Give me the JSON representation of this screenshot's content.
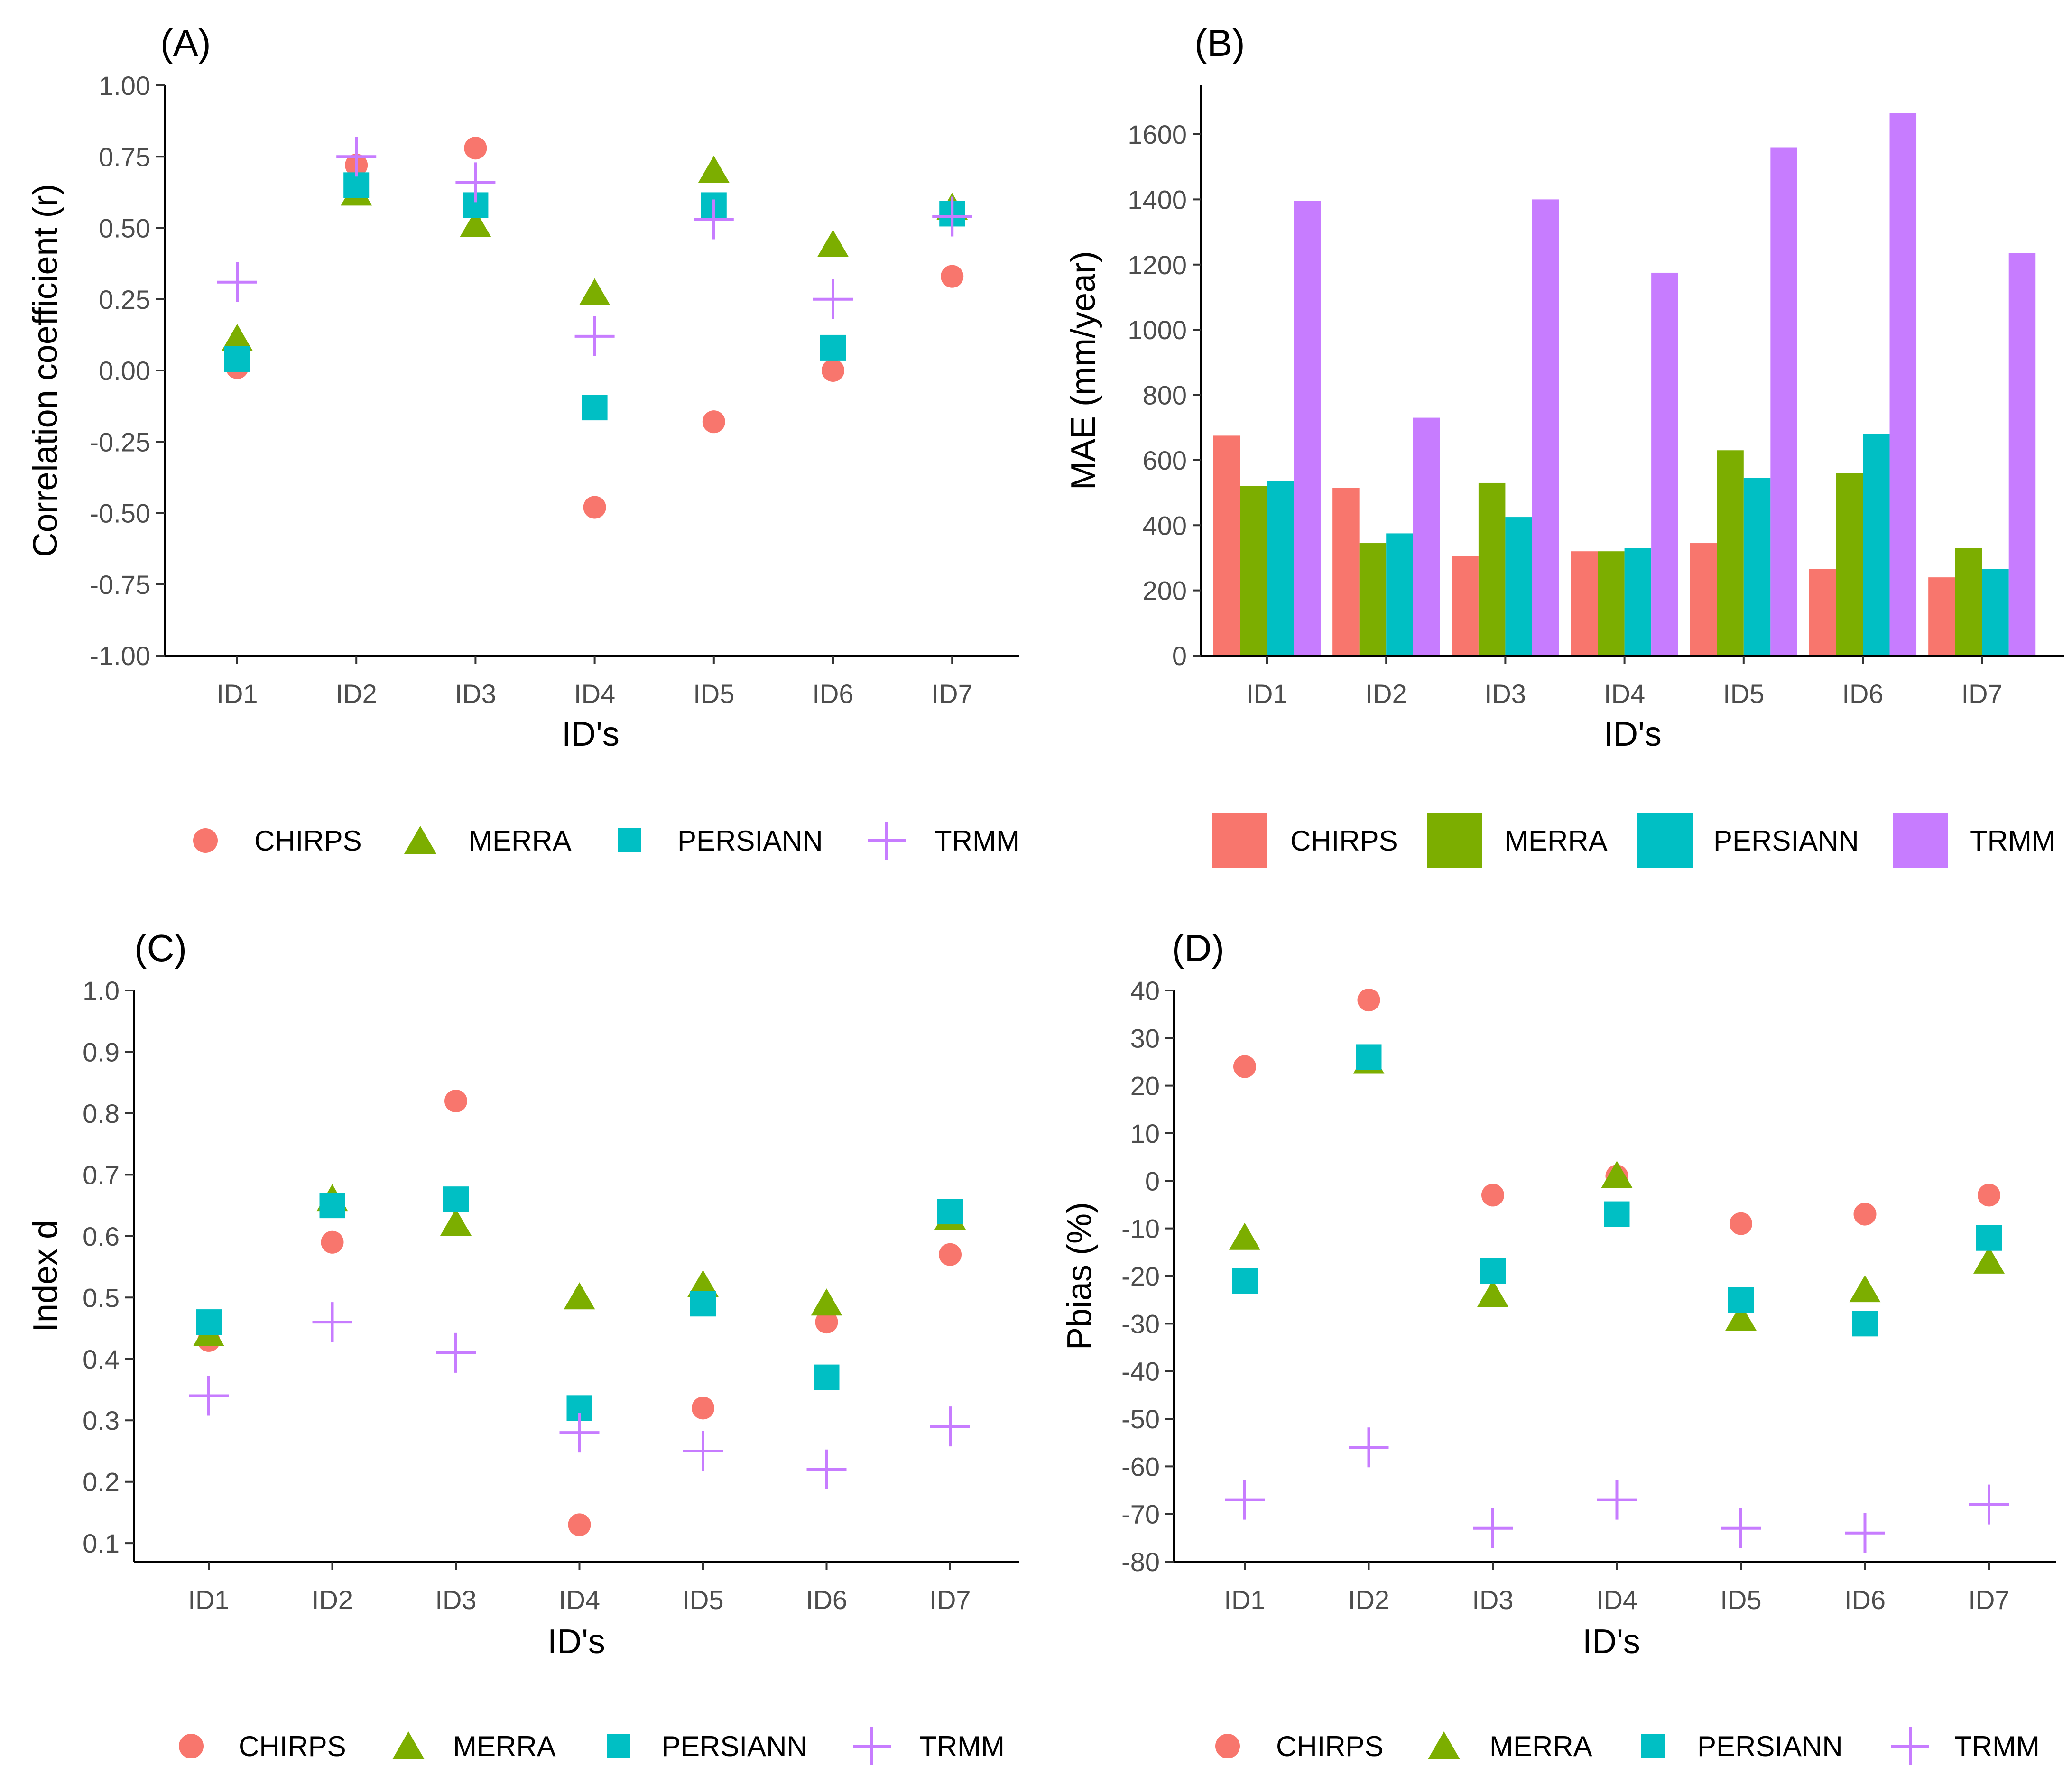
{
  "colors": {
    "CHIRPS": "#F8766D",
    "MERRA": "#7CAE00",
    "PERSIANN": "#00BFC4",
    "TRMM": "#C77CFF"
  },
  "legend": [
    {
      "name": "CHIRPS",
      "shape": "circle"
    },
    {
      "name": "MERRA",
      "shape": "triangle"
    },
    {
      "name": "PERSIANN",
      "shape": "square"
    },
    {
      "name": "TRMM",
      "shape": "plus"
    }
  ],
  "chart_data": [
    {
      "panel": "(A)",
      "type": "scatter",
      "xlabel": "ID's",
      "ylabel": "Correlation coefficient (r)",
      "categories": [
        "ID1",
        "ID2",
        "ID3",
        "ID4",
        "ID5",
        "ID6",
        "ID7"
      ],
      "ylim": [
        -1.0,
        1.0
      ],
      "yticks": [
        -1.0,
        -0.75,
        -0.5,
        -0.25,
        0.0,
        0.25,
        0.5,
        0.75,
        1.0
      ],
      "ytick_labels": [
        "-1.00",
        "-0.75",
        "-0.50",
        "-0.25",
        "0.00",
        "0.25",
        "0.50",
        "0.75",
        "1.00"
      ],
      "series": [
        {
          "name": "CHIRPS",
          "values": [
            0.01,
            0.72,
            0.78,
            -0.48,
            -0.18,
            0.0,
            0.33
          ]
        },
        {
          "name": "MERRA",
          "values": [
            0.11,
            0.62,
            0.51,
            0.27,
            0.7,
            0.44,
            0.57
          ]
        },
        {
          "name": "PERSIANN",
          "values": [
            0.04,
            0.65,
            0.58,
            -0.13,
            0.58,
            0.08,
            0.55
          ]
        },
        {
          "name": "TRMM",
          "values": [
            0.31,
            0.75,
            0.66,
            0.12,
            0.53,
            0.25,
            0.54
          ]
        }
      ]
    },
    {
      "panel": "(B)",
      "type": "bar",
      "xlabel": "ID's",
      "ylabel": "MAE (mm/year)",
      "categories": [
        "ID1",
        "ID2",
        "ID3",
        "ID4",
        "ID5",
        "ID6",
        "ID7"
      ],
      "ylim": [
        0,
        1750
      ],
      "yticks": [
        0,
        200,
        400,
        600,
        800,
        1000,
        1200,
        1400,
        1600
      ],
      "ytick_labels": [
        "0",
        "200",
        "400",
        "600",
        "800",
        "1000",
        "1200",
        "1400",
        "1600"
      ],
      "series": [
        {
          "name": "CHIRPS",
          "values": [
            675,
            515,
            305,
            320,
            345,
            265,
            240
          ]
        },
        {
          "name": "MERRA",
          "values": [
            520,
            345,
            530,
            320,
            630,
            560,
            330
          ]
        },
        {
          "name": "PERSIANN",
          "values": [
            535,
            375,
            425,
            330,
            545,
            680,
            265
          ]
        },
        {
          "name": "TRMM",
          "values": [
            1395,
            730,
            1400,
            1175,
            1560,
            1665,
            1235
          ]
        }
      ]
    },
    {
      "panel": "(C)",
      "type": "scatter",
      "xlabel": "ID's",
      "ylabel": "Index d",
      "categories": [
        "ID1",
        "ID2",
        "ID3",
        "ID4",
        "ID5",
        "ID6",
        "ID7"
      ],
      "ylim": [
        0.07,
        1.0
      ],
      "yticks": [
        0.1,
        0.2,
        0.3,
        0.4,
        0.5,
        0.6,
        0.7,
        0.8,
        0.9,
        1.0
      ],
      "ytick_labels": [
        "0.1",
        "0.2",
        "0.3",
        "0.4",
        "0.5",
        "0.6",
        "0.7",
        "0.8",
        "0.9",
        "1.0"
      ],
      "series": [
        {
          "name": "CHIRPS",
          "values": [
            0.43,
            0.59,
            0.82,
            0.13,
            0.32,
            0.46,
            0.57
          ]
        },
        {
          "name": "MERRA",
          "values": [
            0.44,
            0.66,
            0.62,
            0.5,
            0.52,
            0.49,
            0.63
          ]
        },
        {
          "name": "PERSIANN",
          "values": [
            0.46,
            0.65,
            0.66,
            0.32,
            0.49,
            0.37,
            0.64
          ]
        },
        {
          "name": "TRMM",
          "values": [
            0.34,
            0.46,
            0.41,
            0.28,
            0.25,
            0.22,
            0.29
          ]
        }
      ]
    },
    {
      "panel": "(D)",
      "type": "scatter",
      "xlabel": "ID's",
      "ylabel": "Pbias (%)",
      "categories": [
        "ID1",
        "ID2",
        "ID3",
        "ID4",
        "ID5",
        "ID6",
        "ID7"
      ],
      "ylim": [
        -80,
        40
      ],
      "yticks": [
        -80,
        -70,
        -60,
        -50,
        -40,
        -30,
        -20,
        -10,
        0,
        10,
        20,
        30,
        40
      ],
      "ytick_labels": [
        "-80",
        "-70",
        "-60",
        "-50",
        "-40",
        "-30",
        "-20",
        "-10",
        "0",
        "10",
        "20",
        "30",
        "40"
      ],
      "series": [
        {
          "name": "CHIRPS",
          "values": [
            24,
            38,
            -3,
            1,
            -9,
            -7,
            -3
          ]
        },
        {
          "name": "MERRA",
          "values": [
            -12,
            25,
            -24,
            1,
            -29,
            -23,
            -17
          ]
        },
        {
          "name": "PERSIANN",
          "values": [
            -21,
            26,
            -19,
            -7,
            -25,
            -30,
            -12
          ]
        },
        {
          "name": "TRMM",
          "values": [
            -67,
            -56,
            -73,
            -67,
            -73,
            -74,
            -68
          ]
        }
      ]
    }
  ]
}
